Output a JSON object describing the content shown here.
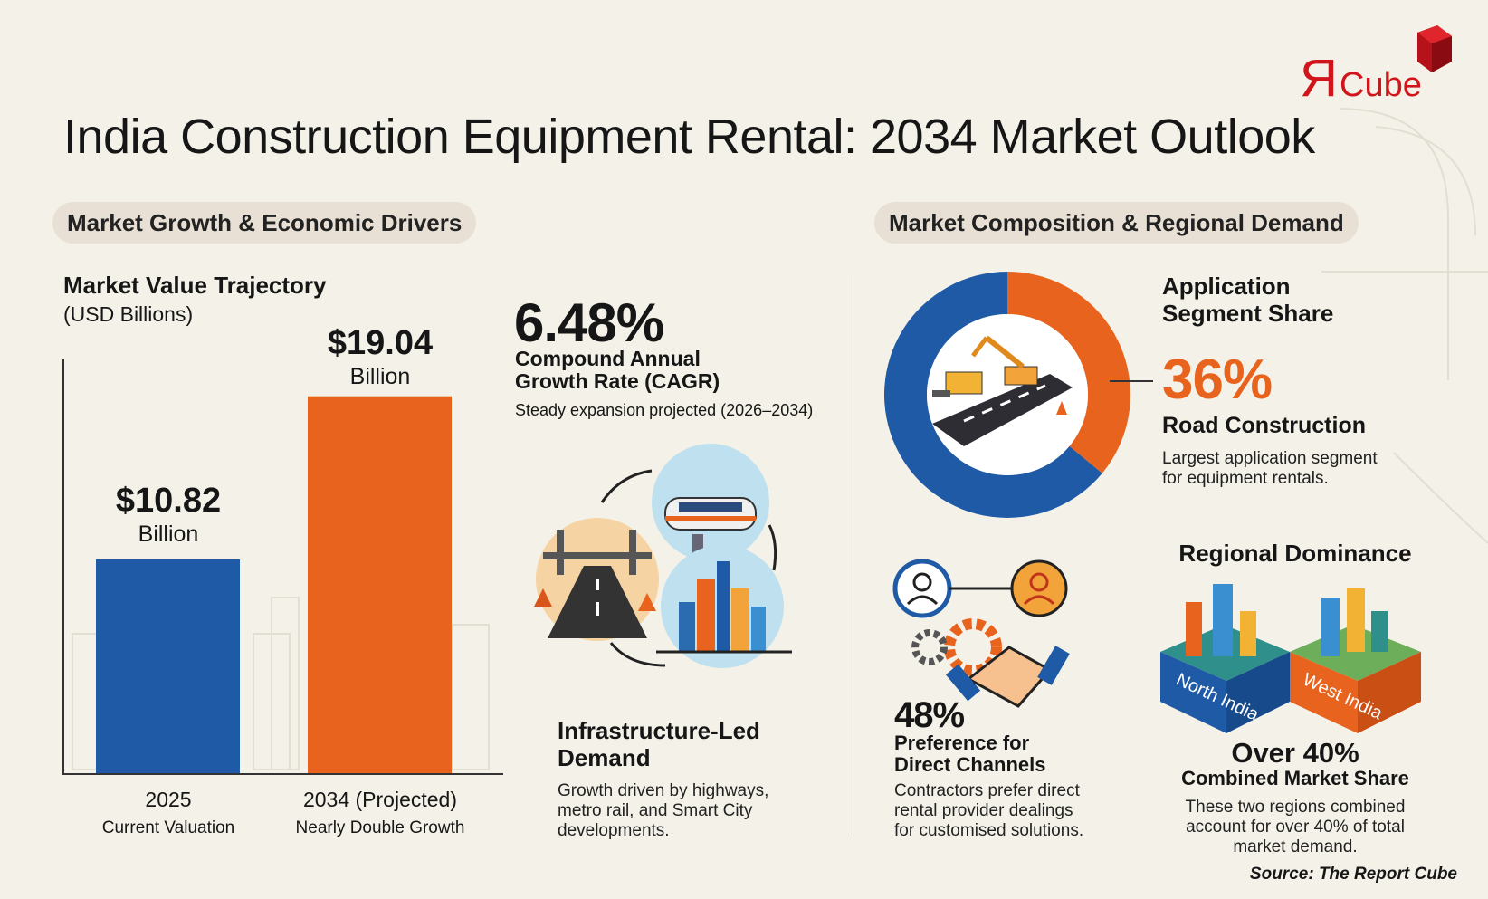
{
  "title": "India Construction Equipment Rental: 2034 Market Outlook",
  "logo": {
    "text_r": "Я",
    "text_cube": "Cube",
    "colors": {
      "brand": "#d0161b"
    }
  },
  "sections": {
    "left": "Market Growth & Economic Drivers",
    "right": "Market Composition & Regional Demand"
  },
  "colors": {
    "blue": "#1f5aa6",
    "orange": "#e8641e",
    "background": "#f4f2e8"
  },
  "chart_data": [
    {
      "type": "bar",
      "title": "Market Value Trajectory",
      "subtitle": "(USD Billions)",
      "categories": [
        "2025",
        "2034 (Projected)"
      ],
      "sublabels": [
        "Current Valuation",
        "Nearly Double Growth"
      ],
      "values": [
        10.82,
        19.04
      ],
      "data_labels": [
        "$10.82",
        "$19.04"
      ],
      "data_label_unit": "Billion",
      "colors": [
        "#1f5aa6",
        "#e8641e"
      ],
      "ylim": [
        0,
        20
      ],
      "grid": false
    },
    {
      "type": "pie",
      "title": "Application Segment Share",
      "slices": [
        {
          "label": "Road Construction",
          "value": 36,
          "color": "#e8641e"
        },
        {
          "value": 64,
          "color": "#1f5aa6"
        }
      ],
      "donut": true
    }
  ],
  "cagr": {
    "value": "6.48%",
    "label_line1": "Compound Annual",
    "label_line2": "Growth Rate (CAGR)",
    "note": "Steady expansion projected (2026–2034)"
  },
  "infra": {
    "title_line1": "Infrastructure-Led",
    "title_line2": "Demand",
    "desc": [
      "Growth driven by highways,",
      "metro rail, and Smart City",
      "developments."
    ]
  },
  "application": {
    "title_line1": "Application",
    "title_line2": "Segment Share",
    "value": "36%",
    "segment": "Road Construction",
    "desc": [
      "Largest application segment",
      "for equipment rentals."
    ]
  },
  "channels": {
    "value": "48%",
    "label_line1": "Preference for",
    "label_line2": "Direct Channels",
    "desc": [
      "Contractors prefer direct",
      "rental provider dealings",
      "for customised solutions."
    ]
  },
  "regional": {
    "title": "Regional Dominance",
    "regions": [
      "North India",
      "West India"
    ],
    "value": "Over 40%",
    "label": "Combined Market Share",
    "desc": [
      "These two regions combined",
      "account for over 40% of total",
      "market demand."
    ]
  },
  "source": "Source: The Report Cube"
}
